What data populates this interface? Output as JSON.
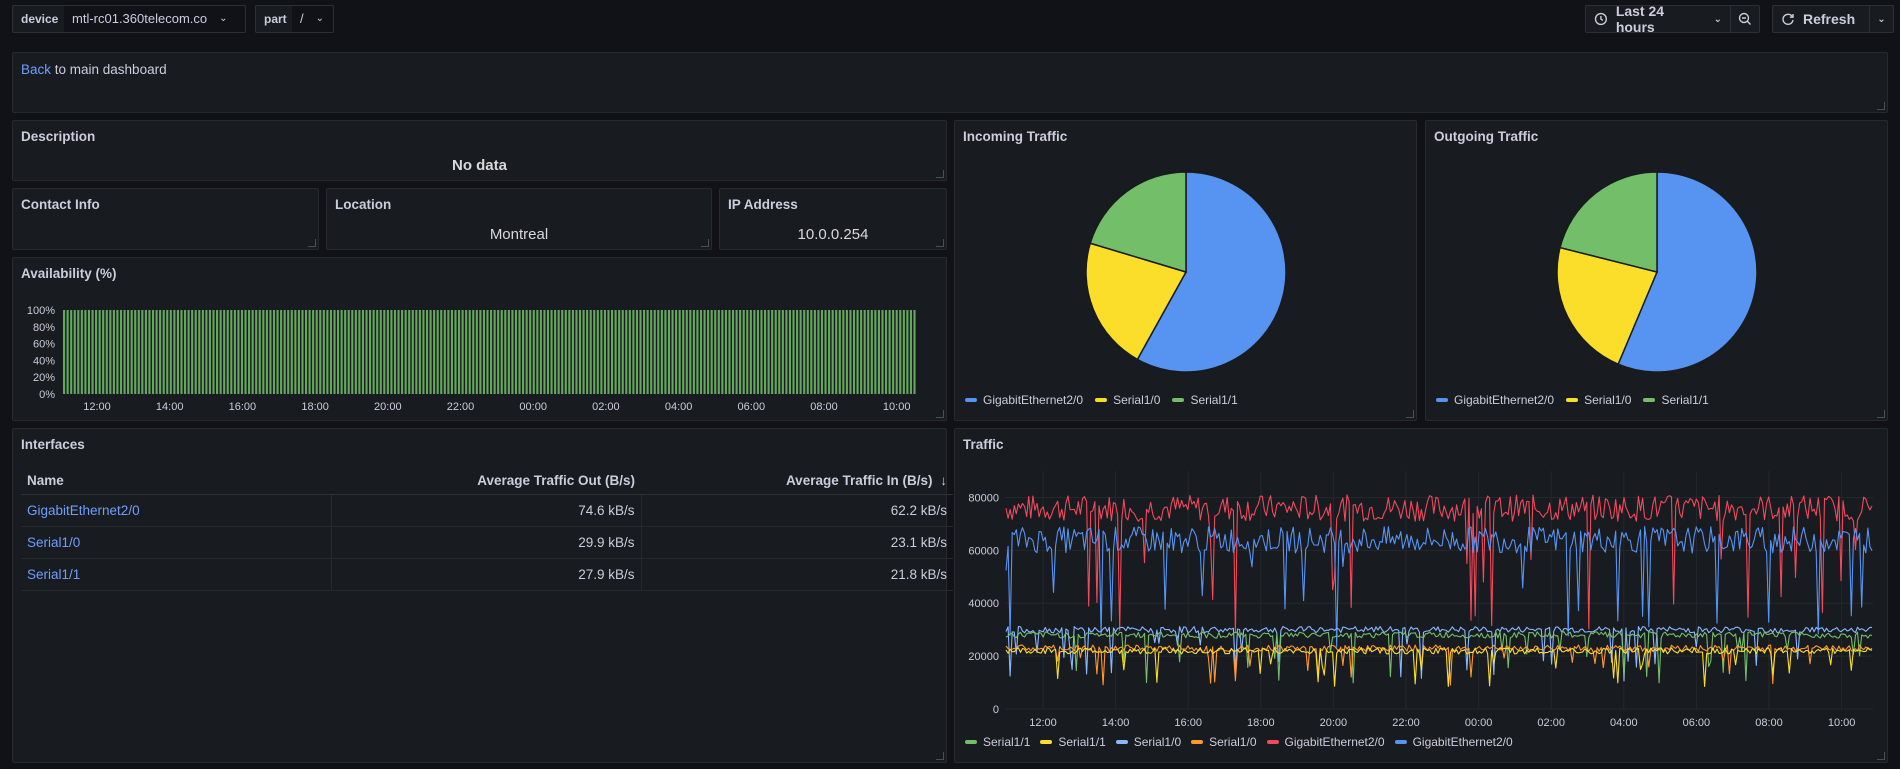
{
  "toolbar": {
    "device_label": "device",
    "device_value": "mtl-rc01.360telecom.co",
    "part_label": "part",
    "part_value": "/",
    "time_range": "Last 24 hours",
    "refresh_label": "Refresh"
  },
  "back_panel": {
    "link_text": "Back",
    "rest_text": " to main dashboard"
  },
  "description": {
    "title": "Description",
    "value": "No data"
  },
  "contact": {
    "title": "Contact Info",
    "value": ""
  },
  "location": {
    "title": "Location",
    "value": "Montreal"
  },
  "ip": {
    "title": "IP Address",
    "value": "10.0.0.254"
  },
  "availability": {
    "title": "Availability (%)",
    "y_ticks": [
      "100%",
      "80%",
      "60%",
      "40%",
      "20%",
      "0%"
    ],
    "x_ticks": [
      "12:00",
      "14:00",
      "16:00",
      "18:00",
      "20:00",
      "22:00",
      "00:00",
      "02:00",
      "04:00",
      "06:00",
      "08:00",
      "10:00"
    ]
  },
  "incoming": {
    "title": "Incoming Traffic",
    "legend": [
      "GigabitEthernet2/0",
      "Serial1/0",
      "Serial1/1"
    ]
  },
  "outgoing": {
    "title": "Outgoing Traffic",
    "legend": [
      "GigabitEthernet2/0",
      "Serial1/0",
      "Serial1/1"
    ]
  },
  "interfaces": {
    "title": "Interfaces",
    "columns": [
      "Name",
      "Average Traffic Out (B/s)",
      "Average Traffic In (B/s)"
    ],
    "sort_icon": "arrow-down-icon",
    "rows": [
      {
        "name": "GigabitEthernet2/0",
        "out": "74.6 kB/s",
        "in": "62.2 kB/s"
      },
      {
        "name": "Serial1/0",
        "out": "29.9 kB/s",
        "in": "23.1 kB/s"
      },
      {
        "name": "Serial1/1",
        "out": "27.9 kB/s",
        "in": "21.8 kB/s"
      }
    ]
  },
  "traffic": {
    "title": "Traffic",
    "y_ticks": [
      "80000",
      "60000",
      "40000",
      "20000",
      "0"
    ],
    "x_ticks": [
      "12:00",
      "14:00",
      "16:00",
      "18:00",
      "20:00",
      "22:00",
      "00:00",
      "02:00",
      "04:00",
      "06:00",
      "08:00",
      "10:00"
    ],
    "legend": [
      "Serial1/1",
      "Serial1/1",
      "Serial1/0",
      "Serial1/0",
      "GigabitEthernet2/0",
      "GigabitEthernet2/0"
    ]
  },
  "colors": {
    "blue": "#5794f2",
    "yellow": "#fade2a",
    "green": "#73bf69",
    "orange": "#ff9830",
    "red": "#f2495c",
    "lightblue": "#8ab8ff",
    "link": "#6e9fff"
  },
  "chart_data": [
    {
      "type": "bar",
      "title": "Availability (%)",
      "ylim": [
        0,
        100
      ],
      "x_range": [
        "11:00",
        "11:00"
      ],
      "values_note_value": 100,
      "series": [
        {
          "values": [
            100
          ]
        }
      ]
    },
    {
      "type": "pie",
      "title": "Incoming Traffic",
      "categories": [
        "GigabitEthernet2/0",
        "Serial1/0",
        "Serial1/1"
      ],
      "values": [
        62.2,
        23.1,
        21.8
      ],
      "colors": [
        "#5794f2",
        "#fade2a",
        "#73bf69"
      ]
    },
    {
      "type": "pie",
      "title": "Outgoing Traffic",
      "categories": [
        "GigabitEthernet2/0",
        "Serial1/0",
        "Serial1/1"
      ],
      "values": [
        74.6,
        29.9,
        27.9
      ],
      "colors": [
        "#5794f2",
        "#fade2a",
        "#73bf69"
      ]
    },
    {
      "type": "line",
      "title": "Traffic",
      "ylim": [
        0,
        90000
      ],
      "series": [
        {
          "name": "Serial1/1",
          "color": "#73bf69",
          "level": 28000
        },
        {
          "name": "Serial1/1",
          "color": "#fade2a",
          "level": 22000
        },
        {
          "name": "Serial1/0",
          "color": "#8ab8ff",
          "level": 30000
        },
        {
          "name": "Serial1/0",
          "color": "#ff9830",
          "level": 23000
        },
        {
          "name": "GigabitEthernet2/0",
          "color": "#f2495c",
          "level": 76000
        },
        {
          "name": "GigabitEthernet2/0",
          "color": "#5794f2",
          "level": 64000
        }
      ]
    }
  ]
}
